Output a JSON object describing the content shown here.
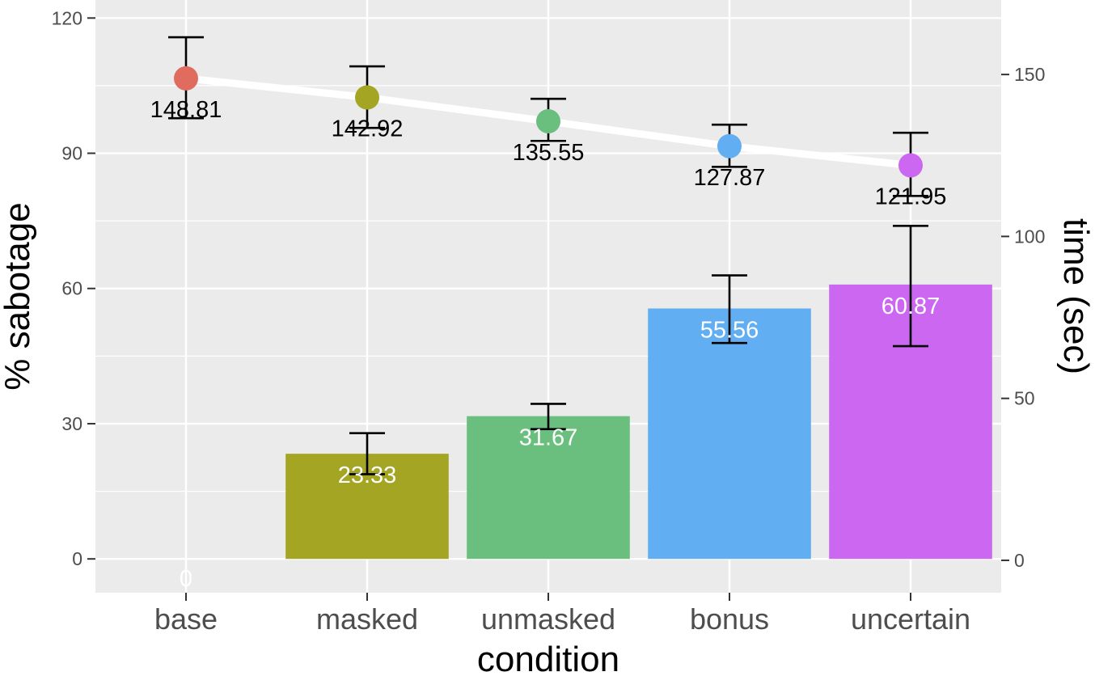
{
  "chart_data": {
    "type": "bar",
    "categories": [
      "base",
      "masked",
      "unmasked",
      "bonus",
      "uncertain"
    ],
    "colors": [
      "#E06C60",
      "#A3A523",
      "#6BBF7E",
      "#62AEF2",
      "#CB67F0"
    ],
    "bars": {
      "values": [
        0,
        23.33,
        31.67,
        55.56,
        60.87
      ],
      "labels": [
        "0",
        "23.33",
        "31.67",
        "55.56",
        "60.87"
      ],
      "error_low": [
        null,
        18.8,
        28.8,
        47.9,
        47.2
      ],
      "error_high": [
        null,
        27.9,
        34.4,
        62.9,
        73.9
      ]
    },
    "time_series": {
      "type": "line",
      "values": [
        148.81,
        142.92,
        135.55,
        127.87,
        121.95
      ],
      "labels": [
        "148.81",
        "142.92",
        "135.55",
        "127.87",
        "121.95"
      ],
      "error_low": [
        136.5,
        133.5,
        129.5,
        121.5,
        112.5
      ],
      "error_high": [
        161.5,
        152.5,
        142.5,
        134.5,
        132.0
      ],
      "line_color": "#ffffff"
    },
    "xlabel": "condition",
    "ylabel": "% sabotage",
    "ylabel_right": "time (sec)",
    "ylim": [
      -7.5,
      124
    ],
    "yticks": [
      0,
      30,
      60,
      90,
      120
    ],
    "ylim_right": [
      -10,
      173
    ],
    "yticks_right": [
      0,
      50,
      100,
      150
    ],
    "grid": true,
    "panel_background": "#EBEBEB",
    "legend": "none"
  }
}
